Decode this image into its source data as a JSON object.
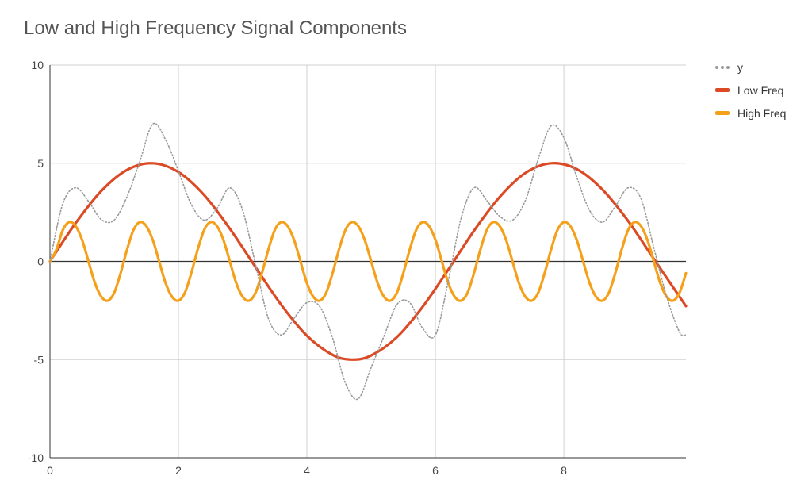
{
  "chart_data": {
    "type": "line",
    "title": "Low and High Frequency Signal Components",
    "xlabel": "",
    "ylabel": "",
    "xlim": [
      0,
      9.9
    ],
    "ylim": [
      -10,
      10
    ],
    "x_ticks": [
      0,
      2,
      4,
      6,
      8
    ],
    "y_ticks": [
      -10,
      -5,
      0,
      5,
      10
    ],
    "grid": true,
    "legend_position": "right",
    "sample_step": 0.1,
    "series": [
      {
        "name": "y",
        "style": "dotted",
        "color": "#999999",
        "points": [
          [
            0,
            0
          ],
          [
            0.2,
            2.94
          ],
          [
            0.4,
            3.75
          ],
          [
            0.6,
            3.06
          ],
          [
            0.8,
            2.13
          ],
          [
            1.0,
            2.1
          ],
          [
            1.2,
            3.3
          ],
          [
            1.4,
            5.1
          ],
          [
            1.6,
            7.0
          ],
          [
            1.8,
            6.2
          ],
          [
            2.0,
            4.6
          ],
          [
            2.2,
            2.9
          ],
          [
            2.4,
            2.1
          ],
          [
            2.6,
            2.7
          ],
          [
            2.8,
            3.75
          ],
          [
            3.0,
            2.6
          ],
          [
            3.2,
            -0.15
          ],
          [
            3.4,
            -2.9
          ],
          [
            3.6,
            -3.75
          ],
          [
            3.8,
            -2.9
          ],
          [
            4.0,
            -2.1
          ],
          [
            4.2,
            -2.3
          ],
          [
            4.4,
            -3.9
          ],
          [
            4.6,
            -6.2
          ],
          [
            4.8,
            -7.0
          ],
          [
            5.0,
            -5.4
          ],
          [
            5.2,
            -3.8
          ],
          [
            5.4,
            -2.2
          ],
          [
            5.6,
            -2.1
          ],
          [
            5.8,
            -3.4
          ],
          [
            6.0,
            -3.75
          ],
          [
            6.2,
            -1.0
          ],
          [
            6.4,
            2.2
          ],
          [
            6.6,
            3.75
          ],
          [
            6.8,
            3.1
          ],
          [
            7.0,
            2.3
          ],
          [
            7.2,
            2.1
          ],
          [
            7.4,
            3.1
          ],
          [
            7.6,
            5.2
          ],
          [
            7.8,
            6.9
          ],
          [
            8.0,
            6.3
          ],
          [
            8.2,
            4.3
          ],
          [
            8.4,
            2.6
          ],
          [
            8.6,
            2.0
          ],
          [
            8.8,
            2.8
          ],
          [
            9.0,
            3.75
          ],
          [
            9.2,
            3.2
          ],
          [
            9.4,
            0.7
          ],
          [
            9.6,
            -1.8
          ],
          [
            9.8,
            -3.6
          ],
          [
            9.9,
            -3.75
          ]
        ]
      },
      {
        "name": "Low Freq",
        "style": "solid",
        "color": "#dc4a25",
        "points": [
          [
            0,
            0
          ],
          [
            0.4,
            1.95
          ],
          [
            0.8,
            3.59
          ],
          [
            1.2,
            4.66
          ],
          [
            1.6,
            5.0
          ],
          [
            2.0,
            4.55
          ],
          [
            2.4,
            3.38
          ],
          [
            2.8,
            1.67
          ],
          [
            3.2,
            -0.29
          ],
          [
            3.6,
            -2.21
          ],
          [
            4.0,
            -3.78
          ],
          [
            4.4,
            -4.76
          ],
          [
            4.7,
            -5.0
          ],
          [
            5.0,
            -4.79
          ],
          [
            5.4,
            -3.86
          ],
          [
            5.8,
            -2.32
          ],
          [
            6.2,
            -0.42
          ],
          [
            6.6,
            1.56
          ],
          [
            7.0,
            3.28
          ],
          [
            7.4,
            4.5
          ],
          [
            7.8,
            5.0
          ],
          [
            8.2,
            4.7
          ],
          [
            8.6,
            3.66
          ],
          [
            9.0,
            2.06
          ],
          [
            9.4,
            0.13
          ],
          [
            9.9,
            -2.28
          ]
        ]
      },
      {
        "name": "High Freq",
        "style": "solid",
        "color": "#f5a01a",
        "points": [
          [
            0,
            0
          ],
          [
            0.1,
            0.6
          ],
          [
            0.2,
            1.6
          ],
          [
            0.3,
            2.0
          ],
          [
            0.4,
            1.8
          ],
          [
            0.5,
            1.1
          ],
          [
            0.6,
            0
          ],
          [
            0.7,
            -1.1
          ],
          [
            0.8,
            -1.8
          ],
          [
            0.9,
            -2.0
          ],
          [
            1.0,
            -1.6
          ],
          [
            1.1,
            -0.6
          ],
          [
            1.2,
            0.6
          ],
          [
            1.3,
            1.6
          ],
          [
            1.4,
            2.0
          ],
          [
            1.5,
            1.8
          ],
          [
            1.6,
            1.1
          ],
          [
            1.7,
            0
          ],
          [
            1.8,
            -1.1
          ],
          [
            1.9,
            -1.8
          ],
          [
            2.0,
            -2.0
          ],
          [
            2.1,
            -1.6
          ],
          [
            2.2,
            -0.6
          ],
          [
            2.3,
            0.6
          ],
          [
            2.4,
            1.6
          ],
          [
            2.5,
            2.0
          ],
          [
            2.6,
            1.8
          ],
          [
            2.7,
            1.1
          ],
          [
            2.8,
            0
          ],
          [
            2.9,
            -1.1
          ],
          [
            3.0,
            -1.8
          ],
          [
            3.1,
            -2.0
          ],
          [
            3.2,
            -1.6
          ],
          [
            3.3,
            -0.6
          ],
          [
            3.4,
            0.6
          ],
          [
            3.5,
            1.6
          ],
          [
            3.6,
            2.0
          ],
          [
            3.7,
            1.8
          ],
          [
            3.8,
            1.1
          ],
          [
            3.9,
            0
          ],
          [
            4.0,
            -1.1
          ],
          [
            4.1,
            -1.8
          ],
          [
            4.2,
            -2.0
          ],
          [
            4.3,
            -1.6
          ],
          [
            4.4,
            -0.6
          ],
          [
            4.5,
            0.6
          ],
          [
            4.6,
            1.6
          ],
          [
            4.7,
            2.0
          ],
          [
            4.8,
            1.8
          ],
          [
            4.9,
            1.1
          ],
          [
            5.0,
            0
          ],
          [
            5.1,
            -1.1
          ],
          [
            5.2,
            -1.8
          ],
          [
            5.3,
            -2.0
          ],
          [
            5.4,
            -1.6
          ],
          [
            5.5,
            -0.6
          ],
          [
            5.6,
            0.6
          ],
          [
            5.7,
            1.6
          ],
          [
            5.8,
            2.0
          ],
          [
            5.9,
            1.8
          ],
          [
            6.0,
            1.1
          ],
          [
            6.1,
            0
          ],
          [
            6.2,
            -1.1
          ],
          [
            6.3,
            -1.8
          ],
          [
            6.4,
            -2.0
          ],
          [
            6.5,
            -1.6
          ],
          [
            6.6,
            -0.6
          ],
          [
            6.7,
            0.6
          ],
          [
            6.8,
            1.6
          ],
          [
            6.9,
            2.0
          ],
          [
            7.0,
            1.8
          ],
          [
            7.1,
            1.1
          ],
          [
            7.2,
            0
          ],
          [
            7.3,
            -1.1
          ],
          [
            7.4,
            -1.8
          ],
          [
            7.5,
            -2.0
          ],
          [
            7.6,
            -1.6
          ],
          [
            7.7,
            -0.6
          ],
          [
            7.8,
            0.6
          ],
          [
            7.9,
            1.6
          ],
          [
            8.0,
            2.0
          ],
          [
            8.1,
            1.8
          ],
          [
            8.2,
            1.1
          ],
          [
            8.3,
            0
          ],
          [
            8.4,
            -1.1
          ],
          [
            8.5,
            -1.8
          ],
          [
            8.6,
            -2.0
          ],
          [
            8.7,
            -1.6
          ],
          [
            8.8,
            -0.6
          ],
          [
            8.9,
            0.6
          ],
          [
            9.0,
            1.6
          ],
          [
            9.1,
            2.0
          ],
          [
            9.2,
            1.8
          ],
          [
            9.3,
            1.1
          ],
          [
            9.4,
            0
          ],
          [
            9.5,
            -1.1
          ],
          [
            9.6,
            -1.8
          ],
          [
            9.7,
            -2.0
          ],
          [
            9.8,
            -1.6
          ],
          [
            9.9,
            -0.6
          ]
        ]
      }
    ]
  }
}
